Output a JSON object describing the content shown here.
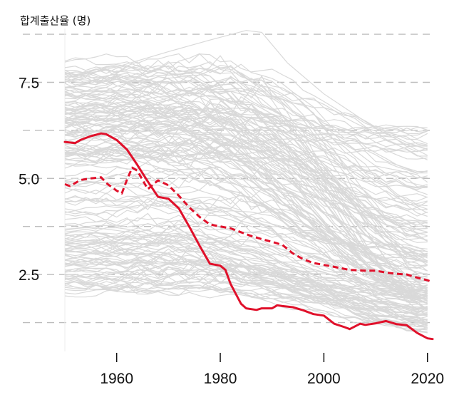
{
  "chart_data": {
    "type": "line",
    "title": "",
    "xlabel": "",
    "ylabel": "합계출산율 (명)",
    "xlim": [
      1950,
      2021
    ],
    "ylim": [
      0.5,
      8.9
    ],
    "x_ticks": [
      {
        "value": 1960,
        "label": "1960"
      },
      {
        "value": 1980,
        "label": "1980"
      },
      {
        "value": 2000,
        "label": "2000"
      },
      {
        "value": 2020,
        "label": "2020"
      }
    ],
    "y_ticks": [
      {
        "value": 2.5,
        "label": "2.5"
      },
      {
        "value": 5.0,
        "label": "5.0"
      },
      {
        "value": 7.5,
        "label": "7.5"
      }
    ],
    "grid_lines": [
      1.25,
      2.5,
      3.75,
      5.0,
      6.25,
      7.5,
      8.75
    ],
    "colors": {
      "highlight": "#e0112b",
      "background_lines": "#d9d9d9",
      "grid": "#bdbdbd"
    },
    "background_series_note": "many grey country lines",
    "highlight_series": [
      {
        "style": "solid",
        "x": [
          1950,
          1952,
          1953,
          1955,
          1957,
          1958,
          1960,
          1962,
          1964,
          1966,
          1968,
          1970,
          1972,
          1974,
          1976,
          1978,
          1980,
          1981,
          1982,
          1984,
          1985,
          1987,
          1988,
          1990,
          1991,
          1992,
          1994,
          1996,
          1998,
          2000,
          2002,
          2004,
          2005,
          2007,
          2008,
          2010,
          2012,
          2014,
          2016,
          2018,
          2020,
          2021
        ],
        "y": [
          5.95,
          5.92,
          6.0,
          6.1,
          6.17,
          6.15,
          6.0,
          5.75,
          5.35,
          4.92,
          4.52,
          4.47,
          4.22,
          3.75,
          3.25,
          2.78,
          2.73,
          2.62,
          2.25,
          1.74,
          1.62,
          1.58,
          1.62,
          1.62,
          1.7,
          1.68,
          1.65,
          1.57,
          1.47,
          1.43,
          1.22,
          1.13,
          1.08,
          1.22,
          1.19,
          1.23,
          1.29,
          1.21,
          1.18,
          0.98,
          0.84,
          0.82
        ]
      },
      {
        "style": "dashed",
        "x": [
          1950,
          1951,
          1953,
          1955,
          1957,
          1958,
          1960,
          1961,
          1962,
          1963,
          1964,
          1966,
          1968,
          1970,
          1972,
          1974,
          1976,
          1978,
          1980,
          1982,
          1984,
          1986,
          1988,
          1990,
          1992,
          1994,
          1996,
          1998,
          2000,
          2002,
          2005,
          2008,
          2010,
          2012,
          2014,
          2016,
          2018,
          2020,
          2021
        ],
        "y": [
          4.85,
          4.8,
          4.96,
          5.0,
          5.03,
          4.88,
          4.68,
          4.61,
          4.97,
          5.28,
          5.2,
          4.72,
          4.95,
          4.82,
          4.55,
          4.25,
          4.0,
          3.8,
          3.75,
          3.7,
          3.6,
          3.5,
          3.42,
          3.35,
          3.27,
          3.05,
          2.9,
          2.8,
          2.75,
          2.7,
          2.62,
          2.6,
          2.6,
          2.55,
          2.52,
          2.5,
          2.42,
          2.35,
          2.3
        ]
      }
    ]
  }
}
